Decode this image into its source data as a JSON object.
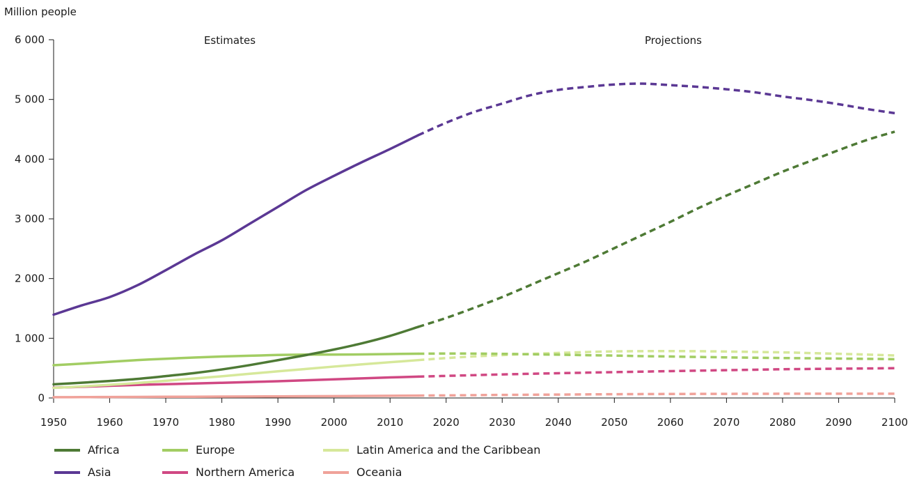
{
  "chart_data": {
    "type": "line",
    "ylabel": "Million people",
    "xlim": [
      1950,
      2100
    ],
    "ylim": [
      0,
      6000
    ],
    "x_ticks": [
      1950,
      1960,
      1970,
      1980,
      1990,
      2000,
      2010,
      2020,
      2030,
      2040,
      2050,
      2060,
      2070,
      2080,
      2090,
      2100
    ],
    "y_ticks": [
      0,
      1000,
      2000,
      3000,
      4000,
      5000,
      6000
    ],
    "y_tick_labels": [
      "0",
      "1 000",
      "2 000",
      "3 000",
      "4 000",
      "5 000",
      "6 000"
    ],
    "grid": false,
    "legend_position": "bottom-left",
    "annotations": {
      "estimates": "Estimates",
      "projections": "Projections"
    },
    "estimate_end_year": 2015,
    "series": [
      {
        "name": "Africa",
        "color": "#4e7a35",
        "x": [
          1950,
          1955,
          1960,
          1965,
          1970,
          1975,
          1980,
          1985,
          1990,
          1995,
          2000,
          2005,
          2010,
          2015,
          2020,
          2025,
          2030,
          2035,
          2040,
          2045,
          2050,
          2055,
          2060,
          2065,
          2070,
          2075,
          2080,
          2085,
          2090,
          2095,
          2100
        ],
        "values": [
          229,
          255,
          285,
          320,
          366,
          416,
          478,
          551,
          633,
          718,
          811,
          916,
          1040,
          1190,
          1340,
          1510,
          1690,
          1890,
          2090,
          2290,
          2510,
          2730,
          2950,
          3180,
          3390,
          3590,
          3790,
          3970,
          4150,
          4320,
          4460
        ]
      },
      {
        "name": "Asia",
        "color": "#5b3894",
        "x": [
          1950,
          1955,
          1960,
          1965,
          1970,
          1975,
          1980,
          1985,
          1990,
          1995,
          2000,
          2005,
          2010,
          2015,
          2020,
          2025,
          2030,
          2035,
          2040,
          2045,
          2050,
          2055,
          2060,
          2065,
          2070,
          2075,
          2080,
          2085,
          2090,
          2095,
          2100
        ],
        "values": [
          1395,
          1550,
          1690,
          1890,
          2140,
          2400,
          2640,
          2920,
          3200,
          3480,
          3720,
          3950,
          4170,
          4400,
          4610,
          4790,
          4930,
          5070,
          5160,
          5210,
          5250,
          5265,
          5240,
          5210,
          5170,
          5120,
          5050,
          4990,
          4920,
          4840,
          4770
        ]
      },
      {
        "name": "Europe",
        "color": "#a2cd63",
        "x": [
          1950,
          1955,
          1960,
          1965,
          1970,
          1975,
          1980,
          1985,
          1990,
          1995,
          2000,
          2005,
          2010,
          2015,
          2020,
          2025,
          2030,
          2035,
          2040,
          2045,
          2050,
          2055,
          2060,
          2065,
          2070,
          2075,
          2080,
          2085,
          2090,
          2095,
          2100
        ],
        "values": [
          549,
          575,
          605,
          635,
          657,
          677,
          694,
          707,
          721,
          727,
          726,
          729,
          736,
          741,
          744,
          743,
          739,
          732,
          725,
          717,
          710,
          701,
          694,
          687,
          680,
          674,
          669,
          665,
          660,
          655,
          650
        ]
      },
      {
        "name": "Northern America",
        "color": "#d04883",
        "x": [
          1950,
          1955,
          1960,
          1965,
          1970,
          1975,
          1980,
          1985,
          1990,
          1995,
          2000,
          2005,
          2010,
          2015,
          2020,
          2025,
          2030,
          2035,
          2040,
          2045,
          2050,
          2055,
          2060,
          2065,
          2070,
          2075,
          2080,
          2085,
          2090,
          2095,
          2100
        ],
        "values": [
          173,
          187,
          204,
          219,
          231,
          242,
          254,
          267,
          280,
          296,
          313,
          329,
          344,
          358,
          370,
          382,
          394,
          405,
          415,
          424,
          433,
          441,
          450,
          458,
          466,
          473,
          481,
          486,
          490,
          494,
          499
        ]
      },
      {
        "name": "Latin America and the Caribbean",
        "color": "#d6e89a",
        "x": [
          1950,
          1955,
          1960,
          1965,
          1970,
          1975,
          1980,
          1985,
          1990,
          1995,
          2000,
          2005,
          2010,
          2015,
          2020,
          2025,
          2030,
          2035,
          2040,
          2045,
          2050,
          2055,
          2060,
          2065,
          2070,
          2075,
          2080,
          2085,
          2090,
          2095,
          2100
        ],
        "values": [
          169,
          193,
          220,
          251,
          288,
          326,
          364,
          405,
          446,
          486,
          526,
          563,
          599,
          634,
          668,
          696,
          718,
          738,
          754,
          769,
          780,
          784,
          785,
          783,
          778,
          771,
          764,
          752,
          740,
          727,
          712
        ]
      },
      {
        "name": "Oceania",
        "color": "#f0a29a",
        "x": [
          1950,
          1955,
          1960,
          1965,
          1970,
          1975,
          1980,
          1985,
          1990,
          1995,
          2000,
          2005,
          2010,
          2015,
          2020,
          2025,
          2030,
          2035,
          2040,
          2045,
          2050,
          2055,
          2060,
          2065,
          2070,
          2075,
          2080,
          2085,
          2090,
          2095,
          2100
        ],
        "values": [
          13,
          14,
          16,
          18,
          20,
          21,
          23,
          25,
          27,
          29,
          31,
          34,
          37,
          40,
          43,
          47,
          51,
          54,
          57,
          60,
          63,
          65,
          67,
          68,
          69,
          70,
          71,
          71,
          72,
          72,
          72
        ]
      }
    ]
  }
}
